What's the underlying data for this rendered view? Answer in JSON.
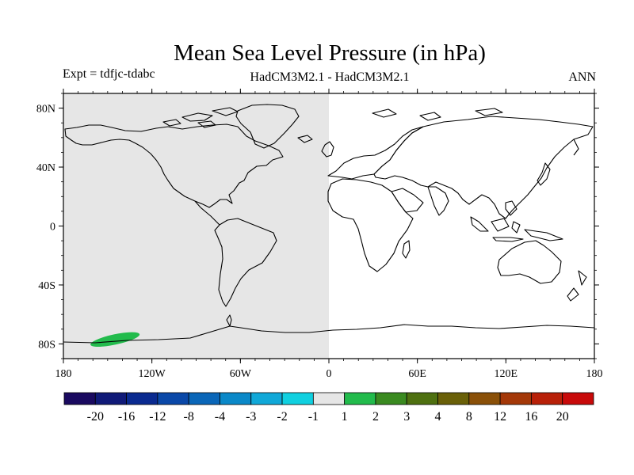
{
  "title": "Mean Sea Level Pressure (in hPa)",
  "left_label": "Expt = tdfjc-tdabc",
  "center_label": "HadCM3M2.1 - HadCM3M2.1",
  "right_label": "ANN",
  "map": {
    "lon_range": [
      -180,
      180
    ],
    "lat_range": [
      -90,
      90
    ],
    "ocean_color": "#ffffff",
    "coast_color": "#000000",
    "lat_ticks": [
      {
        "value": 80,
        "label": "80N"
      },
      {
        "value": 40,
        "label": "40N"
      },
      {
        "value": 0,
        "label": "0"
      },
      {
        "value": -40,
        "label": "40S"
      },
      {
        "value": -80,
        "label": "80S"
      }
    ],
    "lon_ticks": [
      {
        "value": -180,
        "label": "180"
      },
      {
        "value": -120,
        "label": "120W"
      },
      {
        "value": -60,
        "label": "60W"
      },
      {
        "value": 0,
        "label": "0"
      },
      {
        "value": 60,
        "label": "60E"
      },
      {
        "value": 120,
        "label": "120E"
      },
      {
        "value": 180,
        "label": "180"
      }
    ],
    "shaded_regions": [
      {
        "name": "neutral-band",
        "lon_min": -180,
        "lon_max": 0,
        "lat_min": -90,
        "lat_max": 90,
        "color": "#e6e6e6",
        "bin": "-1 to 1"
      },
      {
        "name": "positive-anomaly",
        "lon_center": -145,
        "lat_center": -77,
        "lon_half_width": 17,
        "lat_half_height": 3.5,
        "color": "#22bb4c",
        "bin": "1 to 2"
      }
    ]
  },
  "colorbar": {
    "colors": [
      "#1a0a60",
      "#101a78",
      "#0a2a90",
      "#0a48a8",
      "#0a66b8",
      "#0a88c8",
      "#10a8d8",
      "#10d0e0",
      "#e6e6e6",
      "#22bb4c",
      "#3a8a20",
      "#4e7010",
      "#6a6008",
      "#8a5008",
      "#a43808",
      "#b82008",
      "#c80a0a"
    ],
    "labels": [
      "-20",
      "-16",
      "-12",
      "-8",
      "-4",
      "-3",
      "-2",
      "-1",
      "1",
      "2",
      "3",
      "4",
      "8",
      "12",
      "16",
      "20"
    ]
  }
}
